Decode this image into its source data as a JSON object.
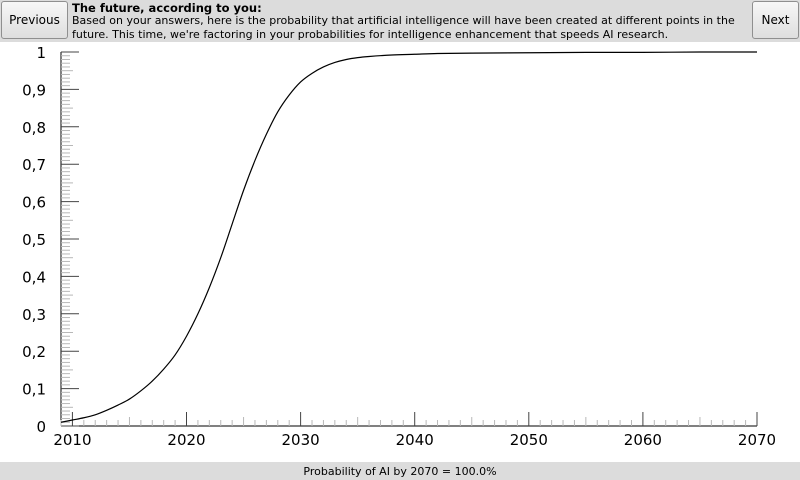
{
  "nav": {
    "previous_label": "Previous",
    "next_label": "Next"
  },
  "header": {
    "title": "The future, according to you:",
    "description": "Based on your answers, here is the probability that artificial intelligence will have been created at different points in the future. This time, we're factoring in your probabilities for intelligence enhancement that speeds AI research."
  },
  "footer": {
    "summary": "Probability of AI by 2070 = 100.0%"
  },
  "chart_data": {
    "type": "line",
    "title": "",
    "xlabel": "",
    "ylabel": "",
    "xlim": [
      2009,
      2070
    ],
    "ylim": [
      0,
      1
    ],
    "x_ticks": [
      "2010",
      "2020",
      "2030",
      "2040",
      "2050",
      "2060",
      "2070"
    ],
    "y_ticks": [
      "0",
      "0,1",
      "0,2",
      "0,3",
      "0,4",
      "0,5",
      "0,6",
      "0,7",
      "0,8",
      "0,9",
      "1"
    ],
    "grid": false,
    "series": [
      {
        "x": [
          2009,
          2010,
          2011,
          2012,
          2013,
          2014,
          2015,
          2016,
          2017,
          2018,
          2019,
          2020,
          2021,
          2022,
          2023,
          2024,
          2025,
          2026,
          2027,
          2028,
          2029,
          2030,
          2031,
          2032,
          2033,
          2034,
          2035,
          2036,
          2038,
          2040,
          2042,
          2045,
          2050,
          2055,
          2060,
          2065,
          2070
        ],
        "y": [
          0.01,
          0.016,
          0.022,
          0.03,
          0.042,
          0.056,
          0.072,
          0.094,
          0.12,
          0.152,
          0.19,
          0.24,
          0.3,
          0.37,
          0.45,
          0.54,
          0.63,
          0.71,
          0.78,
          0.84,
          0.885,
          0.92,
          0.943,
          0.96,
          0.972,
          0.98,
          0.985,
          0.988,
          0.992,
          0.994,
          0.996,
          0.997,
          0.998,
          0.999,
          0.999,
          1.0,
          1.0
        ]
      }
    ]
  }
}
